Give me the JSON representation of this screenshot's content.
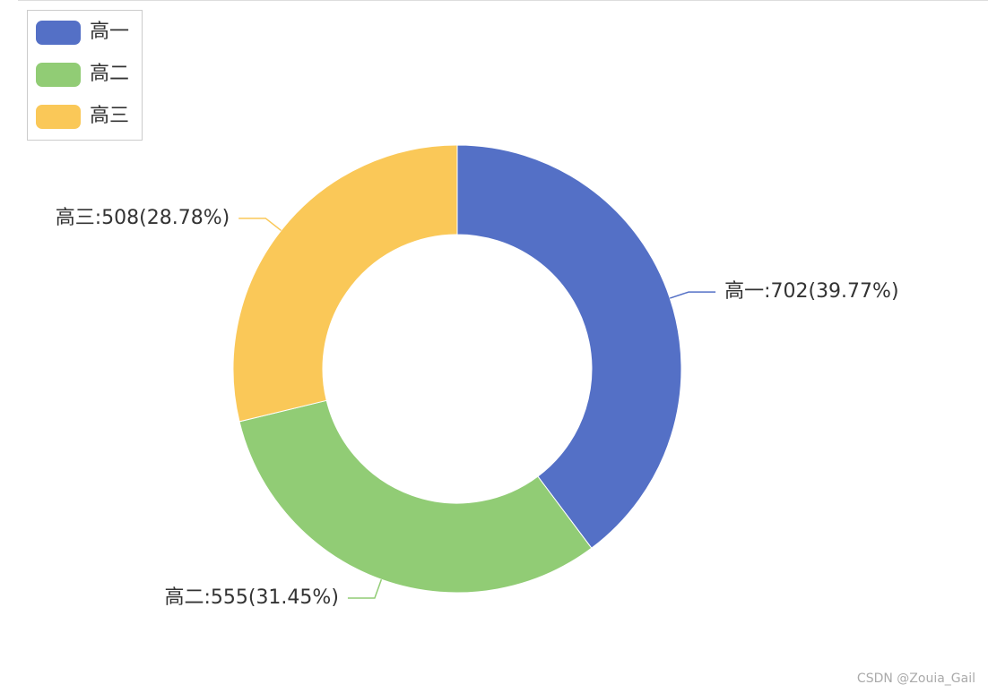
{
  "chart_data": {
    "type": "pie",
    "categories": [
      "高一",
      "高二",
      "高三"
    ],
    "values": [
      702,
      555,
      508
    ],
    "value_labels": [
      "高一:702(39.77%)",
      "高二:555(31.45%)",
      "高三:508(28.78%)"
    ],
    "colors": [
      "#5470c6",
      "#91cc75",
      "#fac858"
    ],
    "donut": true,
    "legend": "top-left"
  },
  "watermark": "CSDN @Zouia_Gail"
}
